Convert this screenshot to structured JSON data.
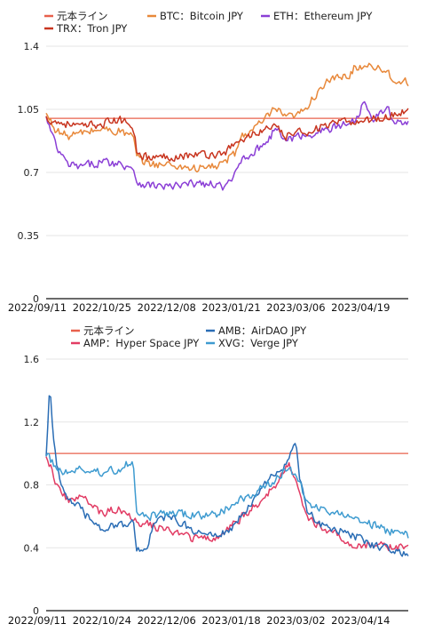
{
  "chart_data": [
    {
      "type": "line",
      "title": "",
      "xlabel": "",
      "ylabel": "",
      "x_ticks": [
        "2022/09/11",
        "2022/10/25",
        "2022/12/08",
        "2023/01/21",
        "2023/03/06",
        "2023/04/19"
      ],
      "y_ticks": [
        "0",
        "0.35",
        "0.7",
        "1.05",
        "1.4"
      ],
      "ylim": [
        0,
        1.4
      ],
      "grid": "horizontal",
      "legend": "top",
      "series": [
        {
          "name": "元本ライン",
          "color": "#E8604C",
          "x": [
            0,
            1
          ],
          "values": [
            1.0,
            1.0
          ]
        },
        {
          "name": "BTC：Bitcoin JPY",
          "color": "#E8883A",
          "x": [
            0,
            0.03,
            0.06,
            0.1,
            0.15,
            0.2,
            0.24,
            0.25,
            0.28,
            0.35,
            0.42,
            0.48,
            0.52,
            0.54,
            0.58,
            0.62,
            0.63,
            0.66,
            0.7,
            0.74,
            0.76,
            0.8,
            0.84,
            0.85,
            0.9,
            0.94,
            0.97,
            1.0
          ],
          "values": [
            1.02,
            0.93,
            0.9,
            0.92,
            0.94,
            0.93,
            0.9,
            0.78,
            0.75,
            0.74,
            0.72,
            0.74,
            0.8,
            0.9,
            0.95,
            1.02,
            1.06,
            1.0,
            1.02,
            1.12,
            1.18,
            1.22,
            1.24,
            1.28,
            1.3,
            1.26,
            1.2,
            1.2
          ]
        },
        {
          "name": "ETH：Ethereum JPY",
          "color": "#8B3FD6",
          "x": [
            0,
            0.03,
            0.06,
            0.1,
            0.15,
            0.2,
            0.24,
            0.25,
            0.28,
            0.35,
            0.42,
            0.46,
            0.5,
            0.52,
            0.54,
            0.58,
            0.62,
            0.63,
            0.66,
            0.7,
            0.74,
            0.8,
            0.84,
            0.86,
            0.88,
            0.9,
            0.94,
            0.97,
            1.0
          ],
          "values": [
            1.0,
            0.83,
            0.74,
            0.73,
            0.76,
            0.75,
            0.73,
            0.65,
            0.63,
            0.62,
            0.64,
            0.63,
            0.62,
            0.68,
            0.78,
            0.82,
            0.9,
            0.95,
            0.88,
            0.9,
            0.92,
            0.95,
            0.98,
            1.0,
            1.12,
            1.0,
            1.05,
            0.98,
            0.97
          ]
        },
        {
          "name": "TRX：Tron JPY",
          "color": "#C8351F",
          "x": [
            0,
            0.03,
            0.06,
            0.1,
            0.15,
            0.2,
            0.24,
            0.25,
            0.28,
            0.35,
            0.42,
            0.48,
            0.52,
            0.54,
            0.58,
            0.62,
            0.63,
            0.66,
            0.7,
            0.74,
            0.8,
            0.84,
            0.88,
            0.92,
            0.96,
            1.0
          ],
          "values": [
            1.0,
            0.98,
            0.97,
            0.95,
            0.97,
            0.99,
            0.97,
            0.82,
            0.78,
            0.79,
            0.8,
            0.8,
            0.85,
            0.88,
            0.92,
            0.95,
            0.95,
            0.9,
            0.92,
            0.94,
            0.97,
            0.98,
            0.99,
            1.0,
            1.02,
            1.05
          ]
        }
      ]
    },
    {
      "type": "line",
      "title": "",
      "xlabel": "",
      "ylabel": "",
      "x_ticks": [
        "2022/09/11",
        "2022/10/24",
        "2022/12/06",
        "2023/01/18",
        "2023/03/02",
        "2023/04/14"
      ],
      "y_ticks": [
        "0",
        "0.4",
        "0.8",
        "1.2",
        "1.6"
      ],
      "ylim": [
        0,
        1.6
      ],
      "grid": "horizontal",
      "legend": "top",
      "series": [
        {
          "name": "元本ライン",
          "color": "#E8604C",
          "x": [
            0,
            1
          ],
          "values": [
            1.0,
            1.0
          ]
        },
        {
          "name": "AMP：Hyper Space JPY",
          "color": "#E23C64",
          "x": [
            0,
            0.03,
            0.06,
            0.1,
            0.15,
            0.2,
            0.24,
            0.25,
            0.28,
            0.35,
            0.42,
            0.48,
            0.52,
            0.55,
            0.6,
            0.64,
            0.67,
            0.7,
            0.72,
            0.75,
            0.8,
            0.85,
            0.9,
            0.95,
            1.0
          ],
          "values": [
            1.0,
            0.8,
            0.7,
            0.72,
            0.62,
            0.65,
            0.6,
            0.55,
            0.55,
            0.5,
            0.45,
            0.48,
            0.55,
            0.62,
            0.7,
            0.82,
            0.95,
            0.75,
            0.6,
            0.55,
            0.48,
            0.42,
            0.42,
            0.4,
            0.42
          ]
        },
        {
          "name": "AMB：AirDAO JPY",
          "color": "#2A6DB5",
          "x": [
            0,
            0.01,
            0.02,
            0.03,
            0.05,
            0.08,
            0.12,
            0.16,
            0.2,
            0.24,
            0.25,
            0.28,
            0.3,
            0.33,
            0.38,
            0.42,
            0.46,
            0.5,
            0.54,
            0.58,
            0.62,
            0.66,
            0.69,
            0.7,
            0.72,
            0.75,
            0.8,
            0.85,
            0.9,
            0.95,
            1.0
          ],
          "values": [
            1.0,
            1.45,
            1.1,
            0.9,
            0.75,
            0.68,
            0.58,
            0.52,
            0.55,
            0.56,
            0.38,
            0.42,
            0.55,
            0.6,
            0.55,
            0.5,
            0.47,
            0.5,
            0.6,
            0.72,
            0.85,
            0.92,
            1.05,
            0.85,
            0.65,
            0.55,
            0.52,
            0.48,
            0.42,
            0.4,
            0.36
          ]
        },
        {
          "name": "XVG：Verge JPY",
          "color": "#3E9BD0",
          "x": [
            0,
            0.03,
            0.06,
            0.1,
            0.15,
            0.2,
            0.24,
            0.25,
            0.28,
            0.35,
            0.42,
            0.48,
            0.52,
            0.55,
            0.6,
            0.64,
            0.67,
            0.7,
            0.72,
            0.75,
            0.8,
            0.85,
            0.9,
            0.95,
            1.0
          ],
          "values": [
            1.0,
            0.9,
            0.88,
            0.9,
            0.88,
            0.9,
            0.95,
            0.65,
            0.6,
            0.62,
            0.6,
            0.62,
            0.68,
            0.72,
            0.78,
            0.85,
            0.92,
            0.8,
            0.7,
            0.65,
            0.62,
            0.58,
            0.55,
            0.5,
            0.48
          ]
        }
      ]
    }
  ]
}
